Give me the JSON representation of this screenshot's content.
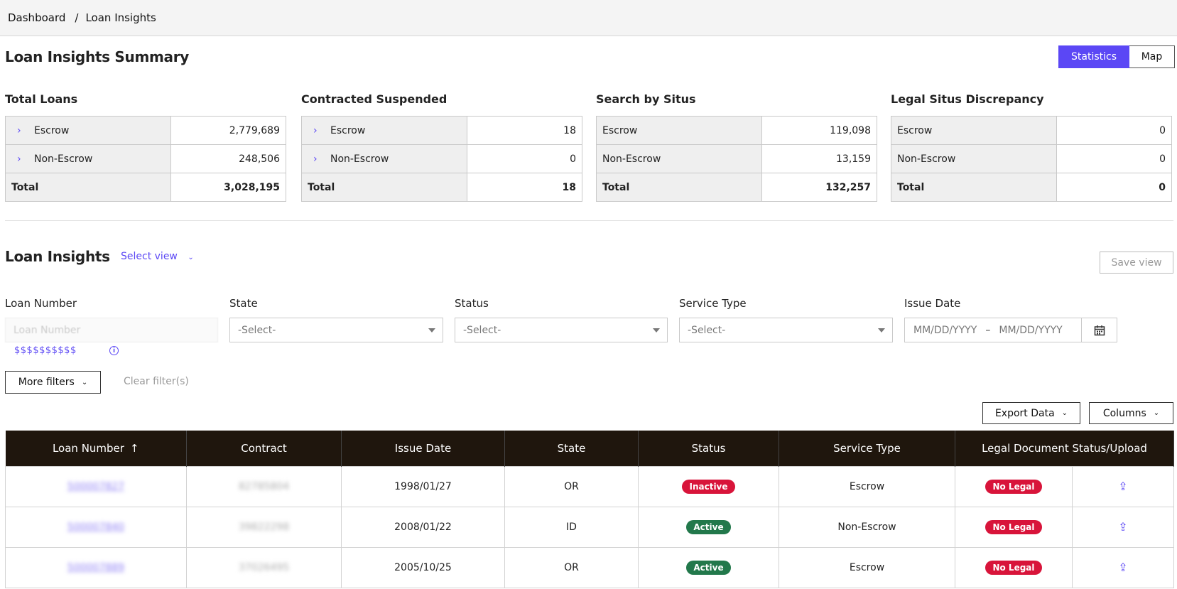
{
  "breadcrumb": {
    "items": [
      "Dashboard",
      "Loan Insights"
    ],
    "separator": "/"
  },
  "summary": {
    "title": "Loan Insights Summary",
    "toggle": {
      "active": "Statistics",
      "inactive": "Map"
    },
    "cards": [
      {
        "title": "Total Loans",
        "rows": [
          {
            "label": "Escrow",
            "value": "2,779,689"
          },
          {
            "label": "Non-Escrow",
            "value": "248,506"
          }
        ],
        "total_label": "Total",
        "total": "3,028,195"
      },
      {
        "title": "Contracted Suspended",
        "rows": [
          {
            "label": "Escrow",
            "value": "18"
          },
          {
            "label": "Non-Escrow",
            "value": "0"
          }
        ],
        "total_label": "Total",
        "total": "18"
      },
      {
        "title": "Search by Situs",
        "rows": [
          {
            "label": "Escrow",
            "value": "119,098"
          },
          {
            "label": "Non-Escrow",
            "value": "13,159"
          }
        ],
        "total_label": "Total",
        "total": "132,257"
      },
      {
        "title": "Legal Situs Discrepancy",
        "rows": [
          {
            "label": "Escrow",
            "value": "0"
          },
          {
            "label": "Non-Escrow",
            "value": "0"
          }
        ],
        "total_label": "Total",
        "total": "0"
      }
    ]
  },
  "insights": {
    "title": "Loan Insights",
    "select_view": "Select view",
    "save_view": "Save view"
  },
  "filters": {
    "loan_number": {
      "label": "Loan Number",
      "placeholder": "Loan Number",
      "hint": "$$$$$$$$$$"
    },
    "state": {
      "label": "State",
      "value": "-Select-"
    },
    "status": {
      "label": "Status",
      "value": "-Select-"
    },
    "service_type": {
      "label": "Service Type",
      "value": "-Select-"
    },
    "issue_date": {
      "label": "Issue Date",
      "from_placeholder": "MM/DD/YYYY",
      "to_placeholder": "MM/DD/YYYY",
      "separator": "–"
    },
    "more_filters": "More filters",
    "clear_filters": "Clear filter(s)"
  },
  "toolbar": {
    "export": "Export Data",
    "columns": "Columns"
  },
  "table": {
    "headers": [
      "Loan Number",
      "Contract",
      "Issue Date",
      "State",
      "Status",
      "Service Type",
      "Legal Document Status/Upload"
    ],
    "rows": [
      {
        "loan": "500007827",
        "contract": "82785804",
        "issue_date": "1998/01/27",
        "state": "OR",
        "status": "Inactive",
        "service": "Escrow",
        "legal": "No Legal"
      },
      {
        "loan": "500007840",
        "contract": "39822298",
        "issue_date": "2008/01/22",
        "state": "ID",
        "status": "Active",
        "service": "Non-Escrow",
        "legal": "No Legal"
      },
      {
        "loan": "500007889",
        "contract": "37026495",
        "issue_date": "2005/10/25",
        "state": "OR",
        "status": "Active",
        "service": "Escrow",
        "legal": "No Legal"
      }
    ]
  },
  "colors": {
    "accent": "#5b47f5",
    "header_bg": "#1f160d",
    "inactive_badge": "#d8143a",
    "active_badge": "#22784b"
  }
}
